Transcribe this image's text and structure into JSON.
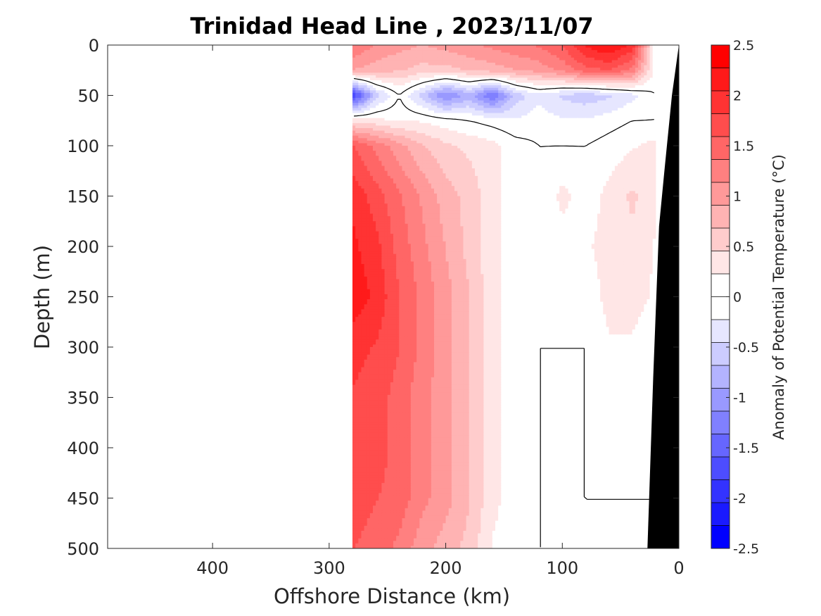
{
  "chart_data": {
    "type": "heatmap",
    "title": "Trinidad Head Line , 2023/11/07",
    "xlabel": "Offshore Distance (km)",
    "ylabel": "Depth (m)",
    "colorbar_label": "Anomaly of Potential Temperature (°C)",
    "xlim": [
      490,
      0
    ],
    "ylim": [
      500,
      0
    ],
    "x_reversed": true,
    "y_reversed": true,
    "xticks": [
      400,
      300,
      200,
      100,
      0
    ],
    "xtick_labels": [
      "400",
      "300",
      "200",
      "100",
      "0"
    ],
    "yticks": [
      0,
      50,
      100,
      150,
      200,
      250,
      300,
      350,
      400,
      450,
      500
    ],
    "ytick_labels": [
      "0",
      "50",
      "100",
      "150",
      "200",
      "250",
      "300",
      "350",
      "400",
      "450",
      "500"
    ],
    "colorbar": {
      "range": [
        -2.5,
        2.5
      ],
      "ticks": [
        2.5,
        2,
        1.5,
        1,
        0.5,
        0,
        -0.5,
        -1,
        -1.5,
        -2,
        -2.5
      ],
      "tick_labels": [
        "2.5",
        "2",
        "1.5",
        "1",
        "0.5",
        "0",
        "-0.5",
        "-1",
        "-1.5",
        "-2",
        "-2.5"
      ],
      "colors_top_to_bottom": [
        "#ff0000",
        "#ff1a1a",
        "#ff3333",
        "#ff4d4d",
        "#ff6666",
        "#ff8080",
        "#ff9999",
        "#ffb3b3",
        "#ffcccc",
        "#ffe6e6",
        "#ffffff",
        "#ffffff",
        "#e6e6ff",
        "#ccccff",
        "#b3b3ff",
        "#9999ff",
        "#8080ff",
        "#6666ff",
        "#4d4dff",
        "#3333ff",
        "#1a1aff",
        "#0000ff"
      ]
    },
    "data_extent_x": [
      280,
      20
    ],
    "x": [
      280,
      260,
      240,
      220,
      200,
      180,
      160,
      140,
      120,
      100,
      80,
      60,
      40,
      20
    ],
    "y": [
      0,
      25,
      50,
      75,
      100,
      150,
      200,
      250,
      300,
      350,
      400,
      450,
      500
    ],
    "z": [
      [
        1.4,
        1.1,
        1.0,
        0.9,
        1.0,
        1.1,
        1.2,
        1.3,
        1.4,
        1.6,
        2.1,
        2.3,
        2.0,
        0.1
      ],
      [
        0.9,
        0.8,
        0.7,
        0.6,
        0.6,
        0.7,
        0.8,
        0.9,
        1.0,
        1.2,
        1.5,
        1.6,
        1.3,
        0.1
      ],
      [
        -1.9,
        -0.6,
        0.0,
        -0.6,
        -1.2,
        -0.8,
        -1.4,
        -0.6,
        -0.3,
        -0.5,
        -0.6,
        -0.5,
        -0.3,
        0.0
      ],
      [
        0.4,
        0.3,
        0.2,
        0.2,
        0.1,
        0.0,
        -0.1,
        -0.2,
        -0.1,
        -0.2,
        -0.2,
        -0.1,
        0.0,
        0.0
      ],
      [
        1.6,
        1.3,
        1.0,
        0.7,
        0.5,
        0.4,
        0.3,
        0.1,
        0.0,
        0.0,
        0.0,
        0.1,
        0.2,
        0.3
      ],
      [
        2.0,
        1.7,
        1.4,
        1.1,
        0.8,
        0.6,
        0.3,
        0.1,
        0.0,
        0.3,
        0.1,
        0.3,
        0.5,
        0.3
      ],
      [
        2.1,
        1.9,
        1.5,
        1.2,
        0.9,
        0.6,
        0.3,
        0.1,
        0.0,
        0.1,
        0.2,
        0.3,
        0.4,
        0.2
      ],
      [
        2.2,
        2.0,
        1.6,
        1.3,
        1.0,
        0.7,
        0.3,
        0.1,
        0.0,
        0.1,
        0.1,
        0.3,
        0.3,
        0.2
      ],
      [
        1.9,
        1.8,
        1.6,
        1.3,
        1.0,
        0.7,
        0.3,
        0.1,
        0.0,
        0.0,
        0.0,
        0.2,
        0.2,
        0.1
      ],
      [
        1.8,
        1.7,
        1.5,
        1.2,
        1.0,
        0.7,
        0.3,
        0.1,
        0.0,
        0.0,
        0.0,
        0.1,
        0.1,
        0.1
      ],
      [
        1.7,
        1.7,
        1.5,
        1.2,
        1.0,
        0.7,
        0.3,
        0.1,
        0.0,
        0.0,
        0.0,
        0.1,
        0.1,
        0.0
      ],
      [
        1.7,
        1.6,
        1.5,
        1.2,
        1.0,
        0.7,
        0.3,
        0.1,
        0.0,
        0.0,
        0.0,
        0.0,
        0.0,
        0.0
      ],
      [
        1.6,
        1.5,
        1.3,
        1.0,
        0.8,
        0.6,
        0.2,
        0.1,
        0.0,
        0.0,
        0.0,
        0.0,
        0.0,
        0.0
      ]
    ],
    "bathymetry": [
      [
        0,
        0
      ],
      [
        6,
        50
      ],
      [
        12,
        120
      ],
      [
        17,
        180
      ],
      [
        22,
        330
      ],
      [
        27,
        500
      ]
    ],
    "bathymetry_color": "#000000",
    "contour_level": 0
  }
}
